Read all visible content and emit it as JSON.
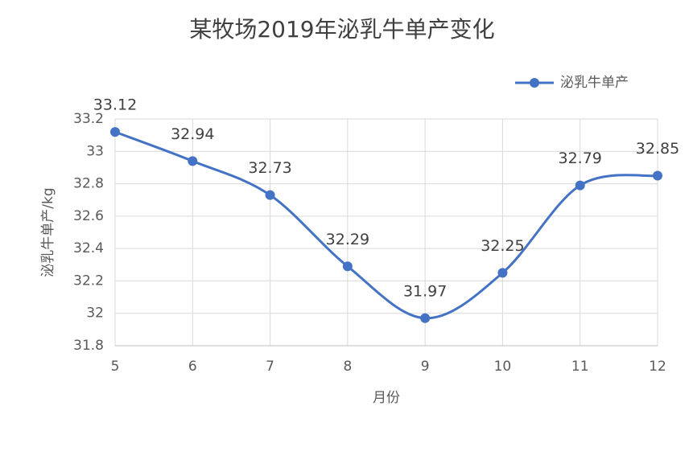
{
  "chart_data": {
    "type": "line",
    "title": "某牧场2019年泌乳牛单产变化",
    "x_label": "月份",
    "y_label": "泌乳牛单产/kg",
    "x": [
      5,
      6,
      7,
      8,
      9,
      10,
      11,
      12
    ],
    "series": [
      {
        "name": "泌乳牛单产",
        "color": "#4472c4",
        "values": [
          33.12,
          32.94,
          32.73,
          32.29,
          31.97,
          32.25,
          32.79,
          32.85
        ]
      }
    ],
    "xlim": [
      5,
      12
    ],
    "xticks": [
      5,
      6,
      7,
      8,
      9,
      10,
      11,
      12
    ],
    "ylim": [
      31.8,
      33.2
    ],
    "yticks": [
      31.8,
      32,
      32.2,
      32.4,
      32.6,
      32.8,
      33,
      33.2
    ],
    "grid": true,
    "smooth": true,
    "legend": "top-right",
    "data_labels": true
  }
}
